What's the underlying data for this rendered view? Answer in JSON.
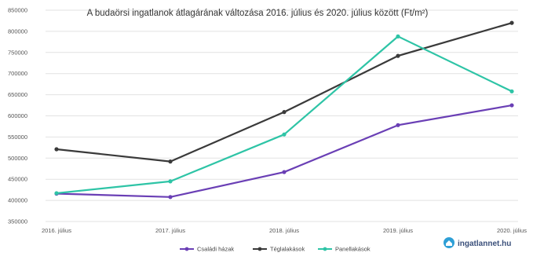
{
  "chart_data": {
    "type": "line",
    "title": "A budaörsi ingatlanok átlagárának változása 2016. július és 2020. július között (Ft/m²)",
    "categories": [
      "2016. július",
      "2017. július",
      "2018. július",
      "2019. július",
      "2020. július"
    ],
    "ylim": [
      350000,
      850000
    ],
    "yticks": [
      350000,
      400000,
      450000,
      500000,
      550000,
      600000,
      650000,
      700000,
      750000,
      800000,
      850000
    ],
    "ytick_labels": [
      "350000",
      "400000",
      "450000",
      "500000",
      "550000",
      "600000",
      "650000",
      "700000",
      "750000",
      "800000",
      "850000"
    ],
    "grid": true,
    "legend_position": "bottom",
    "series": [
      {
        "name": "Családi házak",
        "color": "#6a3fb5",
        "values": [
          416000,
          408000,
          467000,
          578000,
          625000
        ]
      },
      {
        "name": "Téglalakások",
        "color": "#3a3a3a",
        "values": [
          521000,
          492000,
          609000,
          742000,
          820000
        ]
      },
      {
        "name": "Panellakások",
        "color": "#2ec4a6",
        "values": [
          417000,
          445000,
          556000,
          788000,
          658000
        ]
      }
    ]
  },
  "brand": {
    "name": "ingatlannet.hu",
    "color": "#2e9fd6"
  }
}
